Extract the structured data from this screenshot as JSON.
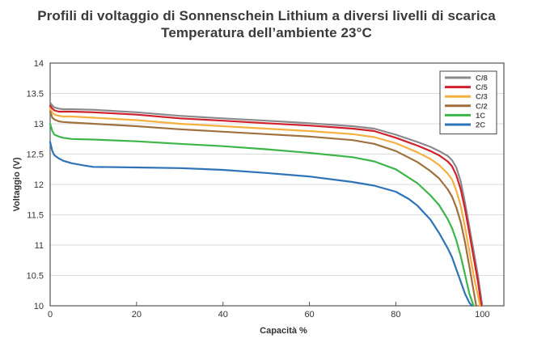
{
  "title": "Profili di voltaggio di Sonnenschein Lithium a diversi livelli di scarica",
  "subtitle": "Temperatura dell’ambiente 23°C",
  "chart_data": {
    "type": "line",
    "title": "Profili di voltaggio di Sonnenschein Lithium a diversi livelli di scarica",
    "subtitle": "Temperatura dell’ambiente 23°C",
    "xlabel": "Capacità %",
    "ylabel": "Voltaggio (V)",
    "xlim": [
      0,
      105
    ],
    "ylim": [
      10,
      14
    ],
    "xticks": [
      "0",
      "20",
      "40",
      "60",
      "80",
      "100"
    ],
    "yticks": [
      "10",
      "10.5",
      "11",
      "11.5",
      "12",
      "12.5",
      "13",
      "13.5",
      "14"
    ],
    "grid": "horizontal",
    "legend_position": "top-right",
    "series": [
      {
        "name": "C/8",
        "color": "#8a8a8e",
        "x": [
          0,
          0.5,
          1,
          2,
          3,
          5,
          10,
          20,
          30,
          40,
          50,
          60,
          70,
          75,
          80,
          85,
          88,
          90,
          92,
          93,
          94,
          95,
          96,
          97,
          98,
          99,
          100
        ],
        "y": [
          13.35,
          13.3,
          13.27,
          13.25,
          13.24,
          13.24,
          13.23,
          13.19,
          13.13,
          13.09,
          13.05,
          13.01,
          12.96,
          12.92,
          12.82,
          12.7,
          12.62,
          12.55,
          12.47,
          12.4,
          12.28,
          12.05,
          11.7,
          11.3,
          10.9,
          10.5,
          10.0
        ]
      },
      {
        "name": "C/5",
        "color": "#d0202c",
        "x": [
          0,
          0.5,
          1,
          2,
          3,
          5,
          10,
          20,
          30,
          40,
          50,
          60,
          70,
          75,
          80,
          85,
          88,
          90,
          92,
          93,
          94,
          95,
          96,
          97,
          98,
          99,
          99.8
        ],
        "y": [
          13.3,
          13.25,
          13.22,
          13.2,
          13.2,
          13.2,
          13.19,
          13.15,
          13.09,
          13.05,
          13.01,
          12.97,
          12.92,
          12.88,
          12.77,
          12.64,
          12.55,
          12.48,
          12.38,
          12.3,
          12.15,
          11.92,
          11.6,
          11.2,
          10.8,
          10.4,
          10.0
        ]
      },
      {
        "name": "C/3",
        "color": "#f5b041",
        "x": [
          0,
          0.5,
          1,
          2,
          3,
          5,
          10,
          20,
          30,
          40,
          50,
          60,
          70,
          75,
          80,
          85,
          88,
          90,
          92,
          93,
          94,
          95,
          96,
          97,
          98,
          99.5
        ],
        "y": [
          13.25,
          13.18,
          13.15,
          13.13,
          13.12,
          13.12,
          13.1,
          13.06,
          13.0,
          12.96,
          12.92,
          12.88,
          12.83,
          12.78,
          12.68,
          12.53,
          12.42,
          12.32,
          12.18,
          12.08,
          11.9,
          11.65,
          11.3,
          10.9,
          10.5,
          10.0
        ]
      },
      {
        "name": "C/2",
        "color": "#a0703f",
        "x": [
          0,
          0.5,
          1,
          2,
          3,
          5,
          10,
          20,
          30,
          40,
          50,
          60,
          70,
          75,
          80,
          85,
          88,
          90,
          92,
          93,
          94,
          95,
          96,
          97,
          98.6
        ],
        "y": [
          13.2,
          13.1,
          13.07,
          13.04,
          13.03,
          13.02,
          13.0,
          12.96,
          12.91,
          12.87,
          12.83,
          12.79,
          12.73,
          12.67,
          12.55,
          12.37,
          12.22,
          12.1,
          11.92,
          11.8,
          11.62,
          11.38,
          11.05,
          10.65,
          10.0
        ]
      },
      {
        "name": "1C",
        "color": "#3cb64a",
        "x": [
          0,
          0.5,
          1,
          2,
          3,
          5,
          10,
          20,
          30,
          40,
          50,
          60,
          70,
          75,
          80,
          85,
          88,
          90,
          92,
          93,
          94,
          95,
          96,
          97,
          98
        ],
        "y": [
          13.0,
          12.88,
          12.82,
          12.79,
          12.77,
          12.75,
          12.74,
          12.71,
          12.67,
          12.63,
          12.58,
          12.52,
          12.45,
          12.38,
          12.25,
          12.02,
          11.82,
          11.66,
          11.43,
          11.28,
          11.08,
          10.82,
          10.52,
          10.2,
          10.0
        ]
      },
      {
        "name": "2C",
        "color": "#2e73b8",
        "x": [
          0,
          0.5,
          1,
          2,
          3,
          5,
          8,
          10,
          20,
          30,
          40,
          50,
          60,
          70,
          75,
          80,
          83,
          85,
          88,
          90,
          92,
          93,
          94,
          95,
          96,
          97,
          97.6
        ],
        "y": [
          12.7,
          12.55,
          12.48,
          12.43,
          12.39,
          12.35,
          12.31,
          12.29,
          12.28,
          12.27,
          12.24,
          12.19,
          12.13,
          12.04,
          11.98,
          11.88,
          11.76,
          11.65,
          11.42,
          11.2,
          10.95,
          10.8,
          10.6,
          10.4,
          10.2,
          10.05,
          10.0
        ]
      }
    ]
  }
}
